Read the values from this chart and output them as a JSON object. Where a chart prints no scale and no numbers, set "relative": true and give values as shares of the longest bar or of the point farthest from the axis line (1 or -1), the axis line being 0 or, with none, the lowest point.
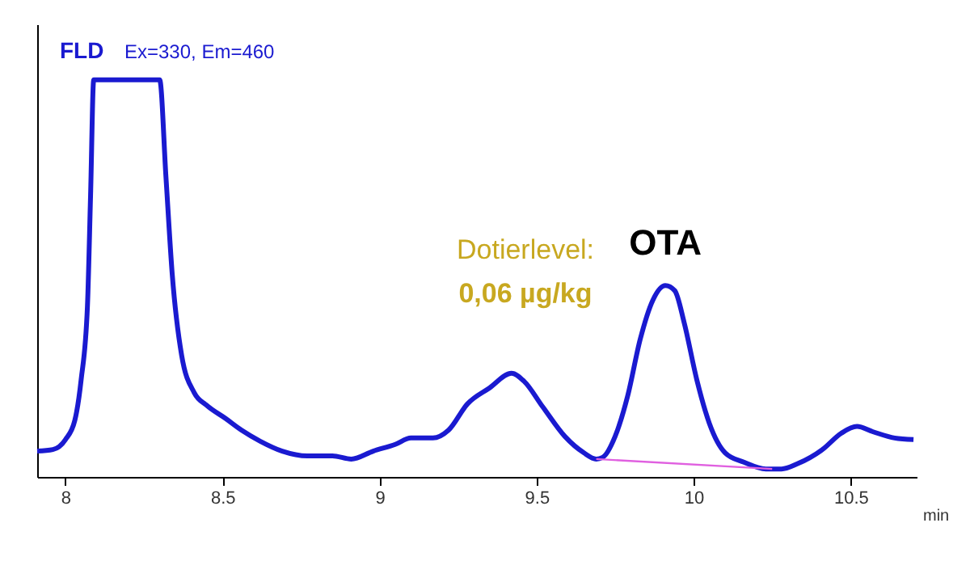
{
  "chart_data": {
    "type": "line",
    "title": "FLD",
    "subtitle": "Ex=330, Em=460",
    "xlabel": "min",
    "relative": true,
    "xlim": [
      7.91,
      10.71
    ],
    "xticks": [
      8,
      8.5,
      9,
      9.5,
      10,
      10.5
    ],
    "annotations": [
      "Dotierlevel:",
      "0,06 µg/kg",
      {
        "text": "OTA",
        "x": 9.91,
        "y": 0.482
      }
    ],
    "grid": false,
    "marker": "none",
    "line_style": "solid",
    "series": [
      {
        "color": "#1a1ad0",
        "x": [
          7.91,
          7.96,
          8.0,
          8.03,
          8.05,
          8.07,
          8.08,
          8.09,
          8.3,
          8.32,
          8.34,
          8.37,
          8.41,
          8.45,
          8.51,
          8.56,
          8.62,
          8.69,
          8.77,
          8.85,
          8.91,
          8.98,
          9.05,
          9.1,
          9.17,
          9.22,
          9.28,
          9.35,
          9.42,
          9.46,
          9.52,
          9.59,
          9.65,
          9.69,
          9.71,
          9.75,
          9.79,
          9.83,
          9.87,
          9.91,
          9.94,
          9.97,
          10.01,
          10.05,
          10.1,
          10.16,
          10.23,
          10.28,
          10.33,
          10.41,
          10.47,
          10.52,
          10.57,
          10.64,
          10.7
        ],
        "values": [
          0.065,
          0.069,
          0.094,
          0.143,
          0.245,
          0.43,
          0.71,
          1.0,
          1.0,
          0.755,
          0.51,
          0.306,
          0.212,
          0.18,
          0.147,
          0.118,
          0.09,
          0.065,
          0.053,
          0.053,
          0.045,
          0.065,
          0.082,
          0.098,
          0.098,
          0.118,
          0.184,
          0.224,
          0.261,
          0.241,
          0.176,
          0.102,
          0.061,
          0.045,
          0.049,
          0.102,
          0.204,
          0.347,
          0.445,
          0.482,
          0.469,
          0.388,
          0.245,
          0.135,
          0.061,
          0.037,
          0.02,
          0.02,
          0.033,
          0.069,
          0.11,
          0.127,
          0.114,
          0.098,
          0.094
        ]
      },
      {
        "color": "#e060e0",
        "x": [
          9.69,
          10.25
        ],
        "values": [
          0.045,
          0.02
        ]
      }
    ]
  }
}
